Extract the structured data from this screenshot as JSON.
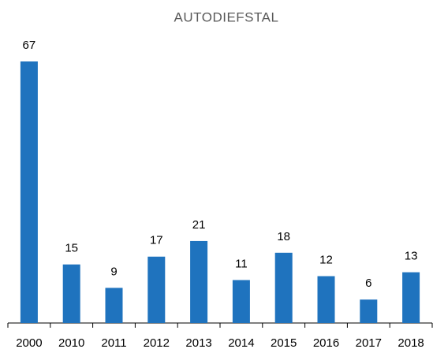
{
  "chart_data": {
    "type": "bar",
    "title": "AUTODIEFSTAL",
    "categories": [
      "2000",
      "2010",
      "2011",
      "2012",
      "2013",
      "2014",
      "2015",
      "2016",
      "2017",
      "2018"
    ],
    "values": [
      67,
      15,
      9,
      17,
      21,
      11,
      18,
      12,
      6,
      13
    ],
    "color": "#1f73be"
  }
}
